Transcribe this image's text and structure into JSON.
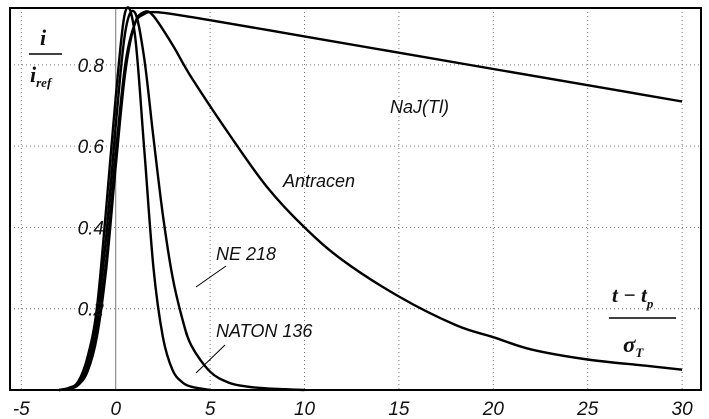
{
  "chart_data": {
    "type": "line",
    "grid": true,
    "xlim": [
      -5.6,
      31
    ],
    "ylim": [
      0,
      0.94
    ],
    "x_ticks": [
      -5,
      0,
      5,
      10,
      15,
      20,
      25,
      30
    ],
    "x_tick_labels": [
      "-5",
      "0",
      "5",
      "10",
      "15",
      "20",
      "25",
      "30"
    ],
    "y_ticks": [
      0.2,
      0.4,
      0.6,
      0.8
    ],
    "y_tick_labels": [
      "0.2",
      "0.4",
      "0.6",
      "0.8"
    ],
    "y_axis_label": {
      "numerator": "i",
      "denominator": "i",
      "subscript": "ref"
    },
    "x_axis_label": {
      "numerator": "t − t",
      "subscript": "p",
      "denominator": "σ",
      "denominator_subscript": "T"
    },
    "series": [
      {
        "name": "NATON 136",
        "x": [
          -3,
          -2.5,
          -2,
          -1.5,
          -1,
          -0.5,
          0,
          0.5,
          1,
          1.5,
          2,
          2.5,
          3,
          3.5,
          4,
          5
        ],
        "y": [
          0.0,
          0.005,
          0.02,
          0.08,
          0.2,
          0.45,
          0.72,
          0.93,
          0.88,
          0.6,
          0.3,
          0.13,
          0.05,
          0.02,
          0.008,
          0.0
        ]
      },
      {
        "name": "NE 218",
        "x": [
          -3,
          -2.5,
          -2,
          -1.5,
          -1,
          -0.5,
          0,
          0.5,
          1,
          1.5,
          2,
          2.5,
          3,
          3.5,
          4,
          5,
          6,
          7,
          8,
          9,
          10
        ],
        "y": [
          0.0,
          0.004,
          0.015,
          0.06,
          0.17,
          0.38,
          0.65,
          0.88,
          0.93,
          0.82,
          0.62,
          0.43,
          0.28,
          0.18,
          0.11,
          0.045,
          0.018,
          0.008,
          0.004,
          0.002,
          0.0
        ]
      },
      {
        "name": "Antracen",
        "x": [
          -3,
          -2.5,
          -2,
          -1.5,
          -1,
          -0.5,
          0,
          0.5,
          1,
          1.5,
          2,
          3,
          4,
          6,
          8,
          10,
          12,
          15,
          18,
          20,
          22,
          25,
          28,
          30
        ],
        "y": [
          0.0,
          0.003,
          0.012,
          0.045,
          0.13,
          0.3,
          0.55,
          0.78,
          0.9,
          0.93,
          0.92,
          0.85,
          0.77,
          0.63,
          0.5,
          0.4,
          0.32,
          0.23,
          0.16,
          0.13,
          0.1,
          0.075,
          0.06,
          0.05
        ]
      },
      {
        "name": "NaJ(Tl)",
        "x": [
          -3,
          -2.5,
          -2,
          -1.5,
          -1,
          -0.5,
          0,
          0.5,
          1,
          1.5,
          2,
          3,
          5,
          10,
          15,
          20,
          25,
          30
        ],
        "y": [
          0.0,
          0.003,
          0.012,
          0.05,
          0.14,
          0.32,
          0.58,
          0.8,
          0.9,
          0.925,
          0.93,
          0.925,
          0.91,
          0.87,
          0.83,
          0.79,
          0.75,
          0.71
        ]
      }
    ]
  }
}
